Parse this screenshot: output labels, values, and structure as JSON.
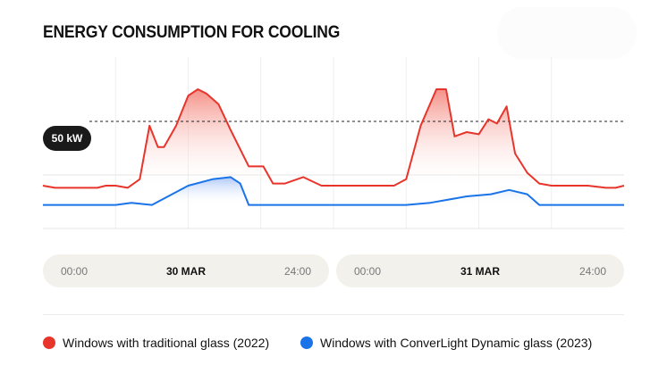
{
  "title": "ENERGY CONSUMPTION FOR COOLING",
  "reference_line": {
    "label": "50 kW",
    "value": 50
  },
  "days": [
    {
      "date": "30 MAR",
      "start": "00:00",
      "end": "24:00"
    },
    {
      "date": "31 MAR",
      "start": "00:00",
      "end": "24:00"
    }
  ],
  "legend": [
    {
      "label": "Windows with traditional glass (2022)",
      "color": "#e8352b"
    },
    {
      "label": "Windows with ConverLight Dynamic glass (2023)",
      "color": "#1a73e8"
    }
  ],
  "chart_data": {
    "type": "line",
    "title": "ENERGY CONSUMPTION FOR COOLING",
    "xlabel": "",
    "ylabel": "",
    "x_unit": "hours",
    "xlim": [
      0,
      48
    ],
    "ylim": [
      0,
      80
    ],
    "grid": true,
    "legend_position": "bottom",
    "reference_lines": [
      {
        "value": 50,
        "label": "50 kW",
        "style": "dashed"
      }
    ],
    "series": [
      {
        "name": "Windows with traditional glass (2022)",
        "color": "#e8352b",
        "fill": true,
        "x": [
          0,
          1,
          3,
          4.5,
          5.2,
          6,
          7,
          8,
          8.8,
          9.5,
          10,
          11,
          12,
          12.8,
          13.5,
          14.5,
          15.5,
          17,
          18.2,
          19,
          20,
          21.5,
          23,
          24,
          25.5,
          27,
          28,
          29,
          30,
          31.2,
          32.5,
          33.3,
          34,
          35,
          36,
          36.8,
          37.5,
          38.3,
          39,
          40,
          41,
          42,
          43.5,
          45,
          46.5,
          47.3,
          48
        ],
        "y": [
          20,
          19,
          19,
          19,
          20,
          20,
          19,
          23,
          48,
          38,
          38,
          48,
          62,
          65,
          63,
          58,
          46,
          29,
          29,
          21,
          21,
          24,
          20,
          20,
          20,
          20,
          20,
          20,
          23,
          48,
          65,
          65,
          43,
          45,
          44,
          51,
          49,
          57,
          35,
          26,
          21,
          20,
          20,
          20,
          19,
          19,
          20
        ]
      },
      {
        "name": "Windows with ConverLight Dynamic glass (2023)",
        "color": "#1a73e8",
        "fill": true,
        "x": [
          0,
          6,
          7.3,
          9,
          12,
          14,
          15.5,
          16.3,
          17,
          18,
          24,
          30,
          32,
          35,
          37,
          38.5,
          40,
          41,
          48
        ],
        "y": [
          11,
          11,
          12,
          11,
          20,
          23,
          24,
          21,
          11,
          11,
          11,
          11,
          12,
          15,
          16,
          18,
          16,
          11,
          11
        ]
      }
    ]
  }
}
